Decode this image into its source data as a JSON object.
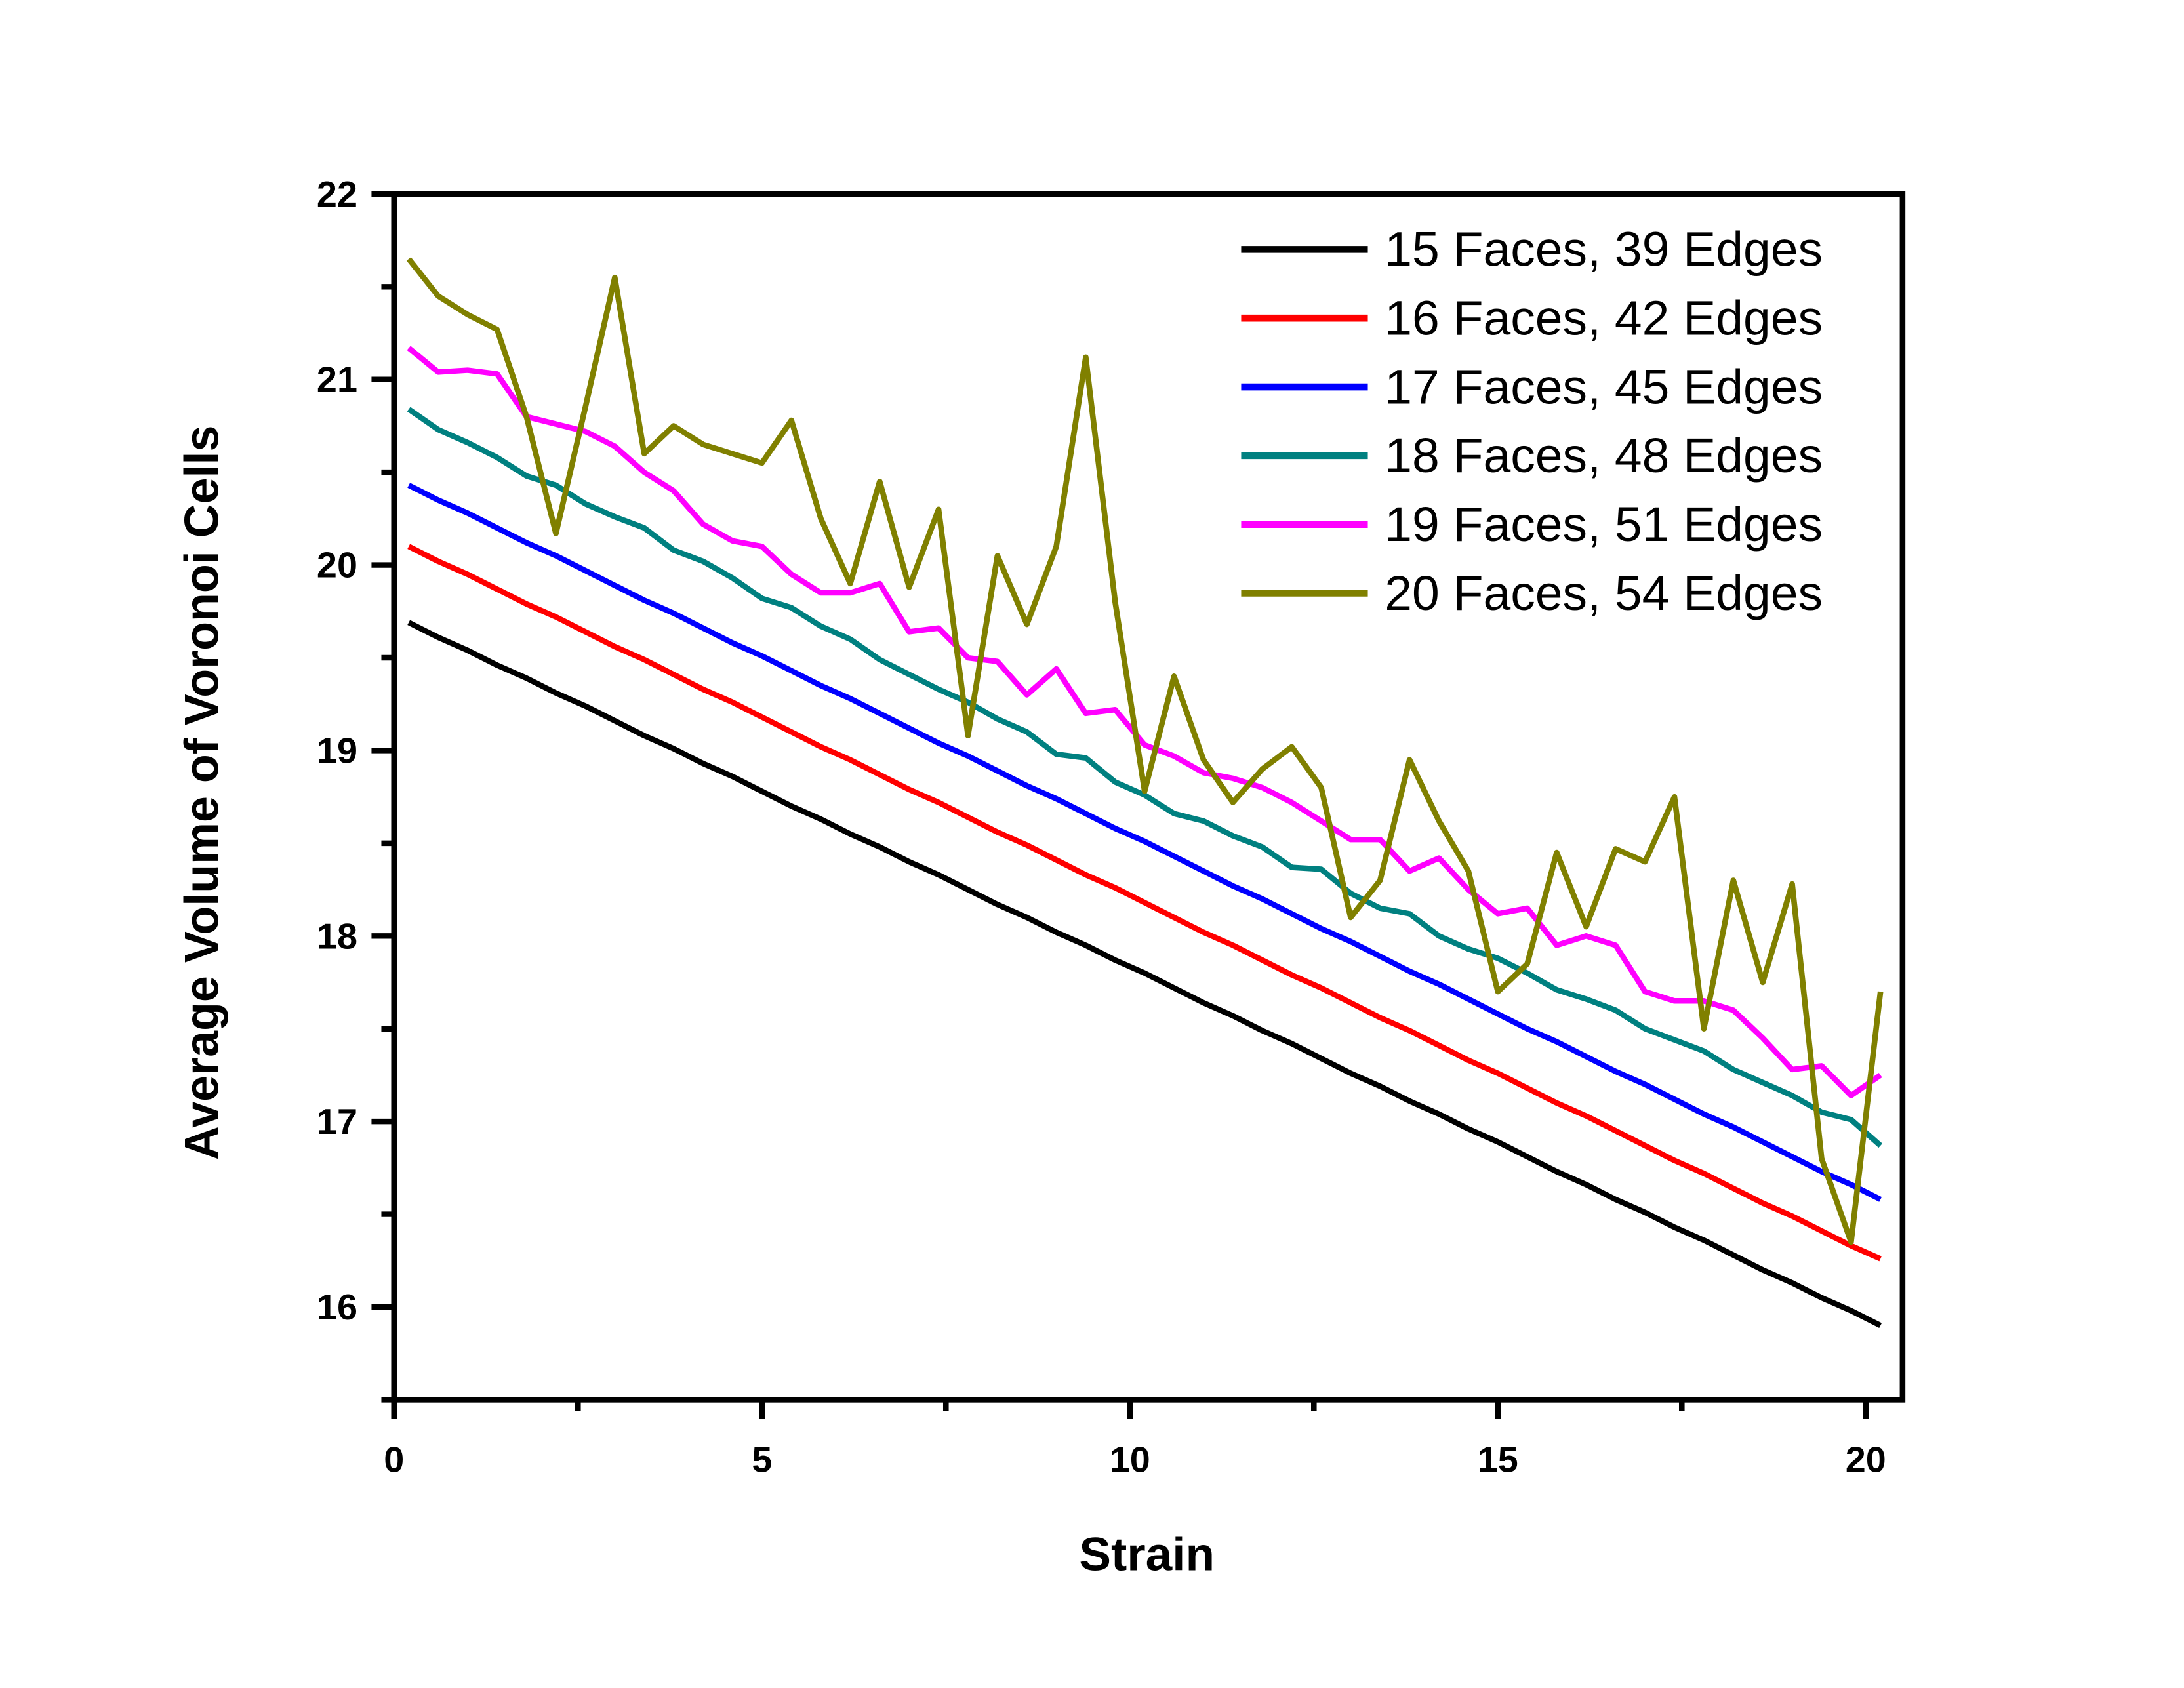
{
  "chart_data": {
    "type": "line",
    "xlabel": "Strain",
    "ylabel": "Average Volume of Voronoi Cells",
    "x": [
      0.2,
      0.6,
      1,
      1.4,
      1.8,
      2.2,
      2.6,
      3,
      3.4,
      3.8,
      4.2,
      4.6,
      5,
      5.4,
      5.8,
      6.2,
      6.6,
      7,
      7.4,
      7.8,
      8.2,
      8.6,
      9,
      9.4,
      9.8,
      10.2,
      10.6,
      11,
      11.4,
      11.8,
      12.2,
      12.6,
      13,
      13.4,
      13.8,
      14.2,
      14.6,
      15,
      15.4,
      15.8,
      16.2,
      16.6,
      17,
      17.4,
      17.8,
      18.2,
      18.6,
      19,
      19.4,
      19.8,
      20.2
    ],
    "series": [
      {
        "name": "15 Faces, 39 Edges",
        "color": "#000000",
        "values": [
          19.69,
          19.61,
          19.54,
          19.46,
          19.39,
          19.31,
          19.24,
          19.16,
          19.08,
          19.01,
          18.93,
          18.86,
          18.78,
          18.7,
          18.63,
          18.55,
          18.48,
          18.4,
          18.33,
          18.25,
          18.17,
          18.1,
          18.02,
          17.95,
          17.87,
          17.8,
          17.72,
          17.64,
          17.57,
          17.49,
          17.42,
          17.34,
          17.26,
          17.19,
          17.11,
          17.04,
          16.96,
          16.89,
          16.81,
          16.73,
          16.66,
          16.58,
          16.51,
          16.43,
          16.36,
          16.28,
          16.2,
          16.13,
          16.05,
          15.98,
          15.9
        ]
      },
      {
        "name": "16 Faces, 42 Edges",
        "color": "#ff0000",
        "values": [
          20.1,
          20.02,
          19.95,
          19.87,
          19.79,
          19.72,
          19.64,
          19.56,
          19.49,
          19.41,
          19.33,
          19.26,
          19.18,
          19.1,
          19.02,
          18.95,
          18.87,
          18.79,
          18.72,
          18.64,
          18.56,
          18.49,
          18.41,
          18.33,
          18.26,
          18.18,
          18.1,
          18.02,
          17.95,
          17.87,
          17.79,
          17.72,
          17.64,
          17.56,
          17.49,
          17.41,
          17.33,
          17.26,
          17.18,
          17.1,
          17.03,
          16.95,
          16.87,
          16.79,
          16.72,
          16.64,
          16.56,
          16.49,
          16.41,
          16.33,
          16.26
        ]
      },
      {
        "name": "17 Faces, 45 Edges",
        "color": "#0000ff",
        "values": [
          20.43,
          20.35,
          20.28,
          20.2,
          20.12,
          20.05,
          19.97,
          19.89,
          19.81,
          19.74,
          19.66,
          19.58,
          19.51,
          19.43,
          19.35,
          19.28,
          19.2,
          19.12,
          19.04,
          18.97,
          18.89,
          18.81,
          18.74,
          18.66,
          18.58,
          18.51,
          18.43,
          18.35,
          18.27,
          18.2,
          18.12,
          18.04,
          17.97,
          17.89,
          17.81,
          17.74,
          17.66,
          17.58,
          17.5,
          17.43,
          17.35,
          17.27,
          17.2,
          17.12,
          17.04,
          16.97,
          16.89,
          16.81,
          16.73,
          16.66,
          16.58
        ]
      },
      {
        "name": "18 Faces, 48 Edges",
        "color": "#008080",
        "values": [
          20.84,
          20.73,
          20.66,
          20.58,
          20.48,
          20.43,
          20.33,
          20.26,
          20.2,
          20.08,
          20.02,
          19.93,
          19.82,
          19.77,
          19.67,
          19.6,
          19.49,
          19.41,
          19.33,
          19.26,
          19.17,
          19.1,
          18.98,
          18.96,
          18.83,
          18.76,
          18.66,
          18.62,
          18.54,
          18.48,
          18.37,
          18.36,
          18.23,
          18.15,
          18.12,
          18.0,
          17.93,
          17.88,
          17.8,
          17.71,
          17.66,
          17.6,
          17.5,
          17.44,
          17.38,
          17.28,
          17.21,
          17.14,
          17.05,
          17.01,
          16.87
        ]
      },
      {
        "name": "19 Faces, 51 Edges",
        "color": "#ff00ff",
        "values": [
          21.17,
          21.04,
          21.05,
          21.03,
          20.8,
          20.76,
          20.72,
          20.64,
          20.5,
          20.4,
          20.22,
          20.13,
          20.1,
          19.95,
          19.85,
          19.85,
          19.9,
          19.64,
          19.66,
          19.5,
          19.48,
          19.3,
          19.44,
          19.2,
          19.22,
          19.03,
          18.97,
          18.88,
          18.85,
          18.8,
          18.72,
          18.62,
          18.52,
          18.52,
          18.35,
          18.42,
          18.25,
          18.12,
          18.15,
          17.95,
          18.0,
          17.95,
          17.7,
          17.65,
          17.65,
          17.6,
          17.45,
          17.28,
          17.3,
          17.14,
          17.25
        ]
      },
      {
        "name": "20 Faces, 54 Edges",
        "color": "#808000",
        "values": [
          21.65,
          21.45,
          21.35,
          21.27,
          20.8,
          20.17,
          20.85,
          21.55,
          20.6,
          20.75,
          20.65,
          20.6,
          20.55,
          20.78,
          20.25,
          19.9,
          20.45,
          19.88,
          20.3,
          19.08,
          20.05,
          19.68,
          20.1,
          21.12,
          19.8,
          18.78,
          19.4,
          18.95,
          18.72,
          18.9,
          19.02,
          18.8,
          18.1,
          18.3,
          18.95,
          18.62,
          18.35,
          17.7,
          17.85,
          18.45,
          18.05,
          18.47,
          18.4,
          18.75,
          17.5,
          18.3,
          17.75,
          18.28,
          16.8,
          16.35,
          17.7
        ]
      }
    ],
    "xlim": [
      0,
      20.5
    ],
    "xticks": [
      0,
      5,
      10,
      15,
      20
    ],
    "xminorticks": [
      2.5,
      7.5,
      12.5,
      17.5
    ],
    "ylim": [
      15.5,
      22
    ],
    "yticks": [
      16,
      17,
      18,
      19,
      20,
      21,
      22
    ],
    "yminorticks": [
      15.5,
      16.5,
      17.5,
      18.5,
      19.5,
      20.5,
      21.5
    ],
    "legend": "upper right",
    "grid": false
  }
}
